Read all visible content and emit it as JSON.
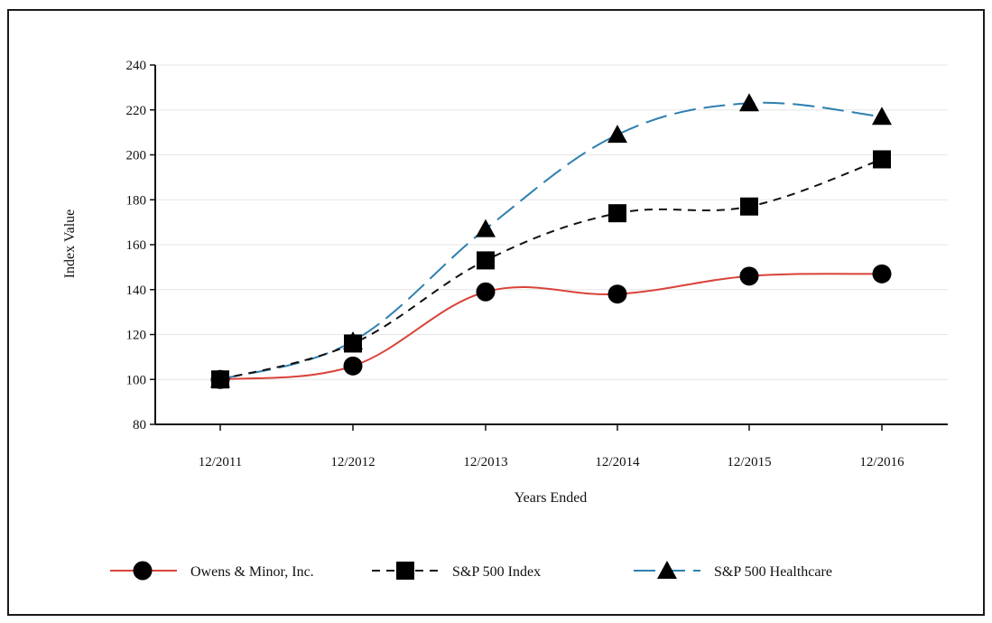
{
  "chart_data": {
    "type": "line",
    "xlabel": "Years Ended",
    "ylabel": "Index Value",
    "categories": [
      "12/2011",
      "12/2012",
      "12/2013",
      "12/2014",
      "12/2015",
      "12/2016"
    ],
    "ylim": [
      80,
      240
    ],
    "yticks": [
      80,
      100,
      120,
      140,
      160,
      180,
      200,
      220,
      240
    ],
    "grid": true,
    "legend_position": "bottom",
    "series": [
      {
        "name": "Owens & Minor, Inc.",
        "values": [
          100,
          106,
          139,
          138,
          146,
          147
        ],
        "color": "#d9433a",
        "dash": "solid",
        "marker": "circle"
      },
      {
        "name": "S&P 500 Index",
        "values": [
          100,
          116,
          153,
          174,
          177,
          198
        ],
        "color": "#111111",
        "dash": "dashed",
        "marker": "square"
      },
      {
        "name": "S&P 500 Healthcare",
        "values": [
          100,
          117,
          167,
          209,
          223,
          217
        ],
        "color": "#2e7fb0",
        "dash": "longdash",
        "marker": "triangle"
      }
    ]
  }
}
